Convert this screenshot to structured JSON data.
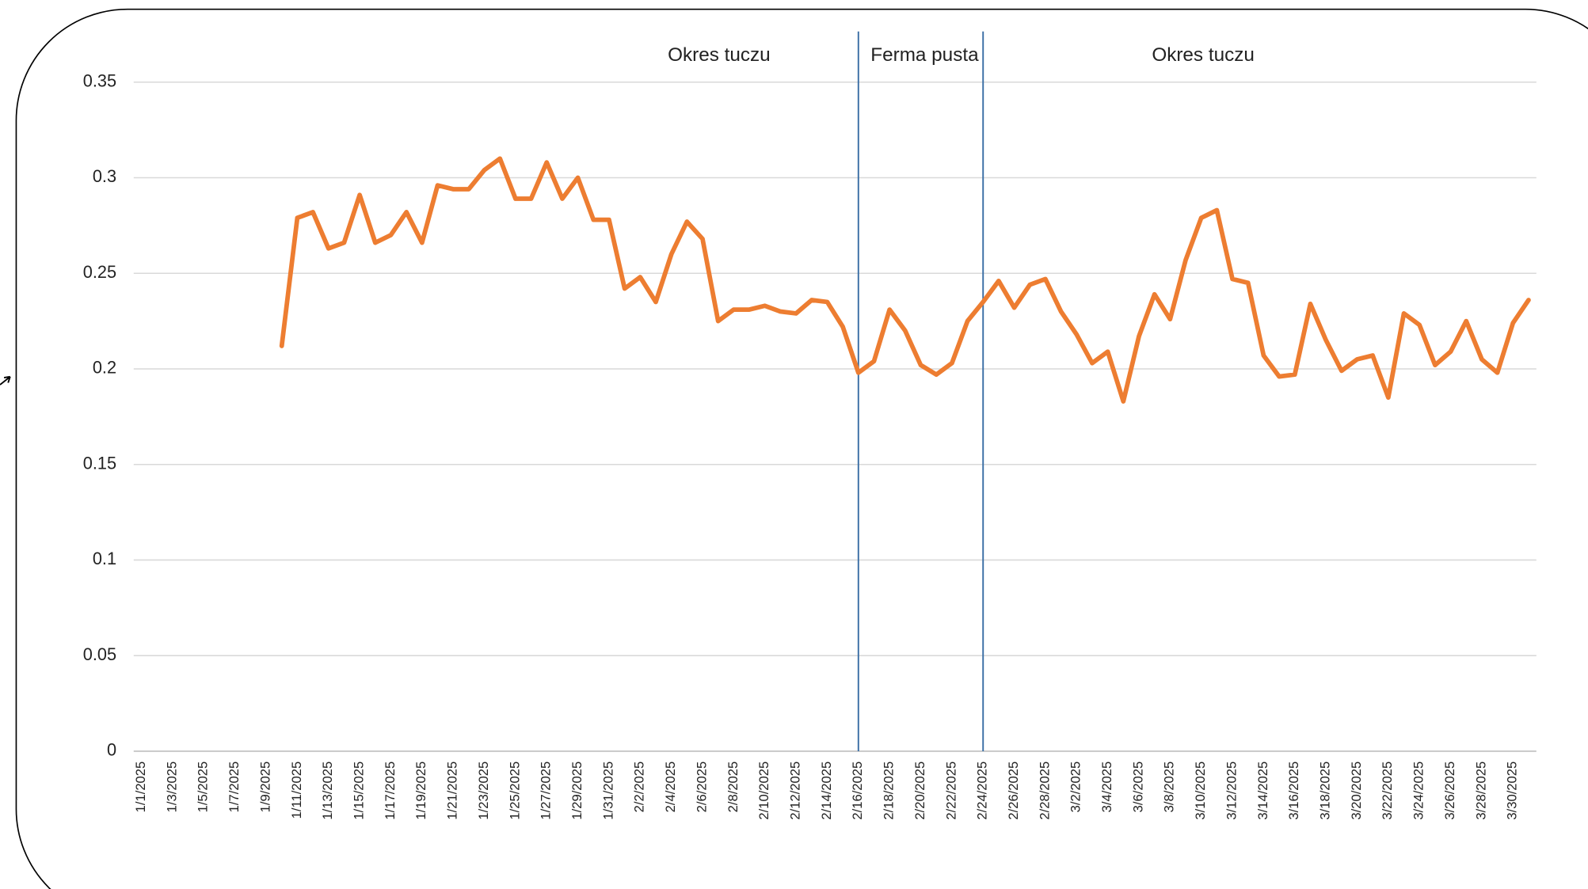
{
  "chart_data": {
    "type": "line",
    "categories": [
      "1/1/2025",
      null,
      "1/3/2025",
      null,
      "1/5/2025",
      null,
      "1/7/2025",
      null,
      "1/9/2025",
      null,
      "1/11/2025",
      null,
      "1/13/2025",
      null,
      "1/15/2025",
      null,
      "1/17/2025",
      null,
      "1/19/2025",
      null,
      "1/21/2025",
      null,
      "1/23/2025",
      null,
      "1/25/2025",
      null,
      "1/27/2025",
      null,
      "1/29/2025",
      null,
      "1/31/2025",
      null,
      "2/2/2025",
      null,
      "2/4/2025",
      null,
      "2/6/2025",
      null,
      "2/8/2025",
      null,
      "2/10/2025",
      null,
      "2/12/2025",
      null,
      "2/14/2025",
      null,
      "2/16/2025",
      null,
      "2/18/2025",
      null,
      "2/20/2025",
      null,
      "2/22/2025",
      null,
      "2/24/2025",
      null,
      "2/26/2025",
      null,
      "2/28/2025",
      null,
      "3/2/2025",
      null,
      "3/4/2025",
      null,
      "3/6/2025",
      null,
      "3/8/2025",
      null,
      "3/10/2025",
      null,
      "3/12/2025",
      null,
      "3/14/2025",
      null,
      "3/16/2025",
      null,
      "3/18/2025",
      null,
      "3/20/2025",
      null,
      "3/22/2025",
      null,
      "3/24/2025",
      null,
      "3/26/2025",
      null,
      "3/28/2025",
      null,
      "3/30/2025",
      null
    ],
    "series": [
      {
        "color": "#ed7d31",
        "values": [
          null,
          null,
          null,
          null,
          null,
          null,
          null,
          null,
          null,
          0.212,
          0.279,
          0.282,
          0.263,
          0.266,
          0.291,
          0.266,
          0.27,
          0.282,
          0.266,
          0.296,
          0.294,
          0.294,
          0.304,
          0.31,
          0.289,
          0.289,
          0.308,
          0.289,
          0.3,
          0.278,
          0.278,
          0.242,
          0.248,
          0.235,
          0.26,
          0.277,
          0.268,
          0.225,
          0.231,
          0.231,
          0.233,
          0.23,
          0.229,
          0.236,
          0.235,
          0.222,
          0.198,
          0.204,
          0.231,
          0.22,
          0.202,
          0.197,
          0.203,
          0.225,
          0.235,
          0.246,
          0.232,
          0.244,
          0.247,
          0.23,
          0.218,
          0.203,
          0.209,
          0.183,
          0.217,
          0.239,
          0.226,
          0.257,
          0.279,
          0.283,
          0.247,
          0.245,
          0.207,
          0.196,
          0.197,
          0.234,
          0.215,
          0.199,
          0.205,
          0.207,
          0.185,
          0.229,
          0.223,
          0.202,
          0.209,
          0.225,
          0.205,
          0.198,
          0.224,
          0.236
        ]
      }
    ],
    "ylim": [
      0,
      0.35
    ],
    "yticks": [
      0,
      0.05,
      0.1,
      0.15,
      0.2,
      0.25,
      0.3,
      0.35
    ],
    "grid": true,
    "separators": [
      "2/16/2025",
      "2/24/2025"
    ],
    "separator_color": "#3a6ea5",
    "annotations": [
      "Okres tuczu",
      "Ferma pusta",
      "Okres tuczu"
    ]
  }
}
